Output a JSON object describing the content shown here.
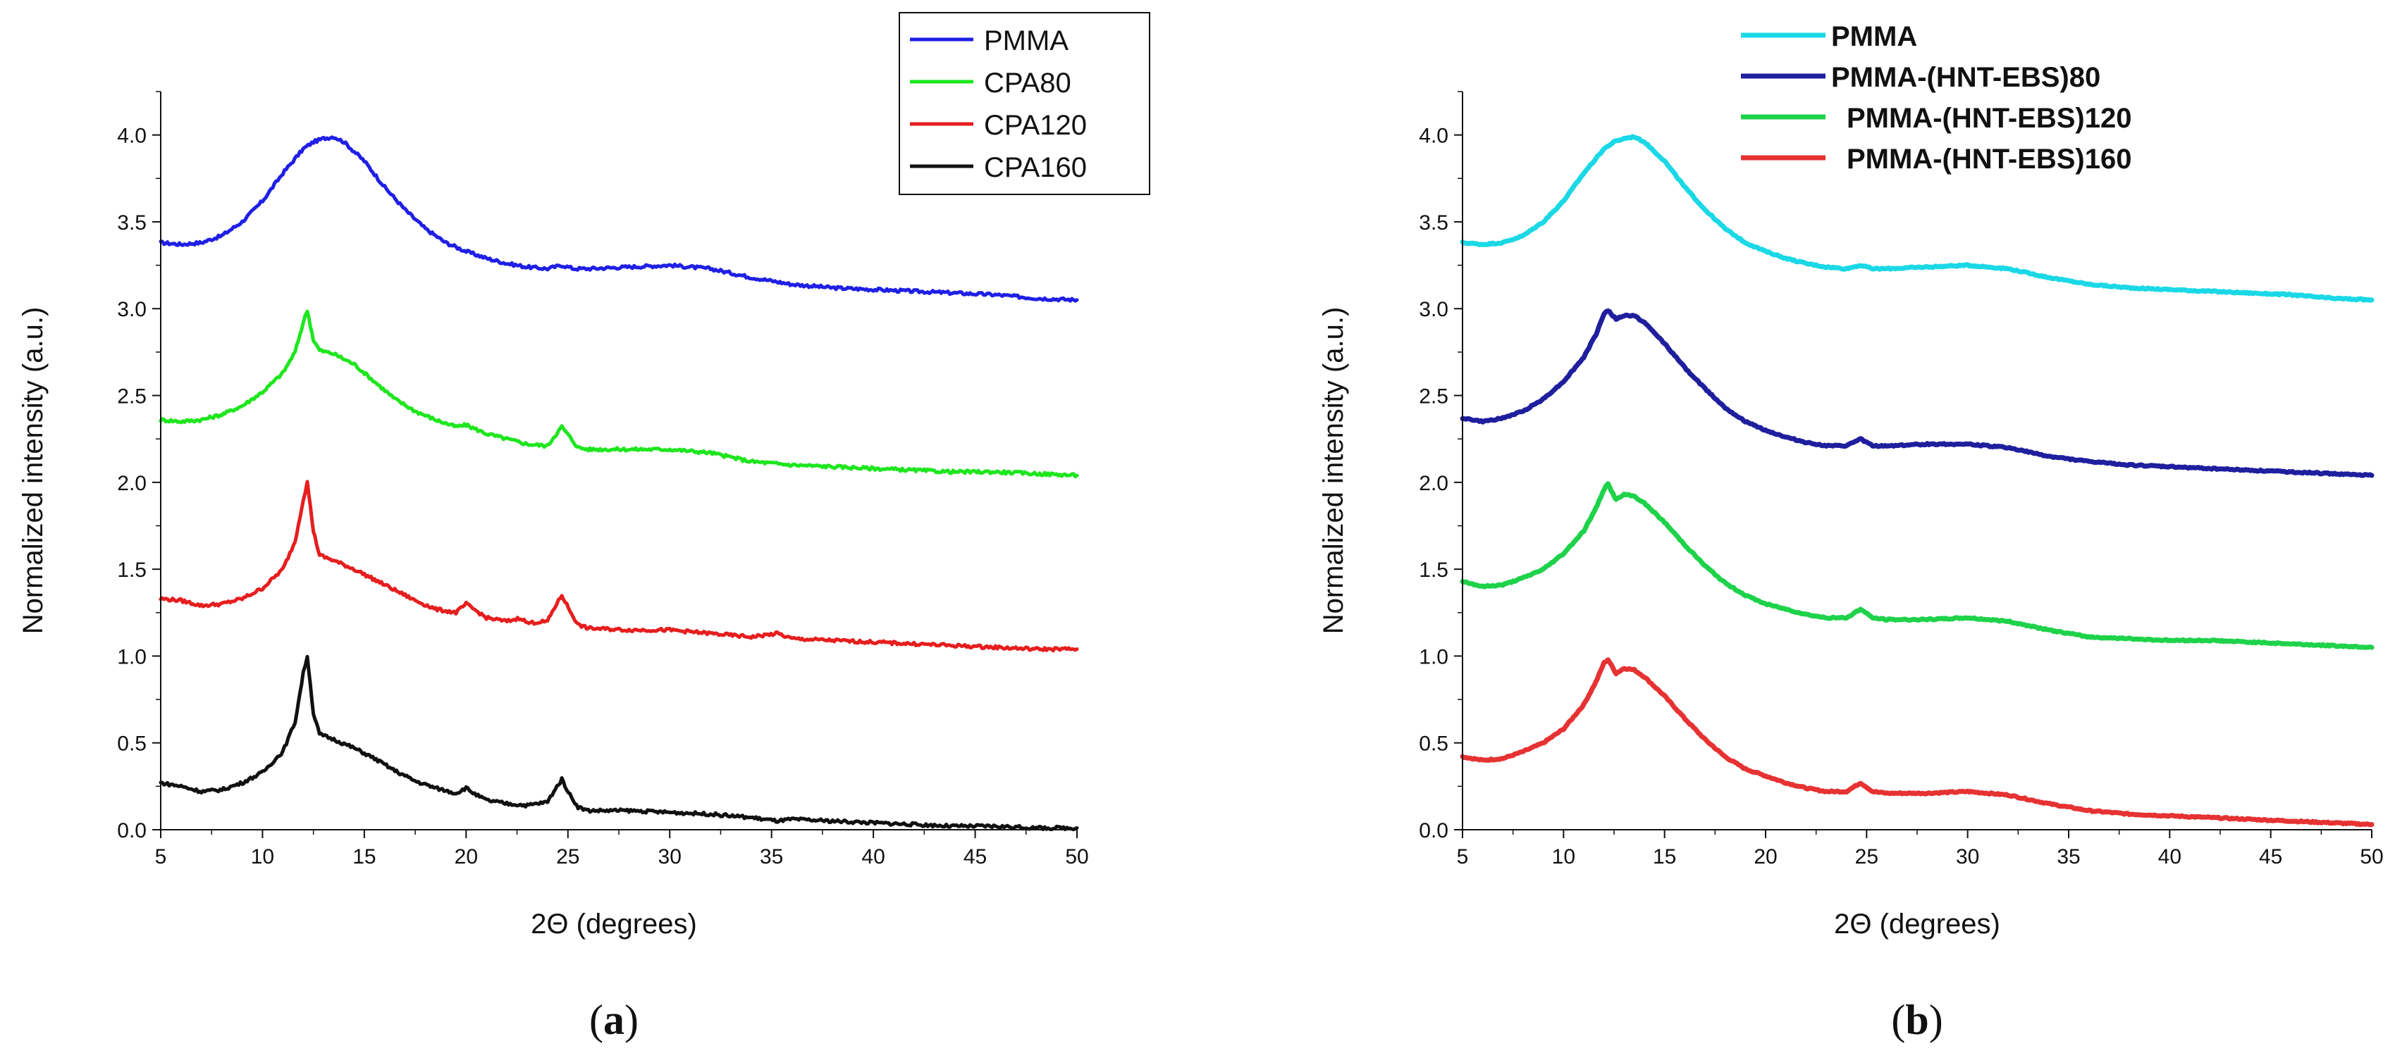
{
  "chart_data": [
    {
      "type": "line",
      "panel_label": "a",
      "title": "",
      "xlabel": "2Θ (degrees)",
      "ylabel": "Normalized intensity (a.u.)",
      "xlim": [
        5,
        50
      ],
      "ylim": [
        0,
        4.25
      ],
      "xticks": [
        "5",
        "10",
        "15",
        "20",
        "25",
        "30",
        "35",
        "40",
        "45",
        "50"
      ],
      "yticks": [
        "0.0",
        "0.5",
        "1.0",
        "1.5",
        "2.0",
        "2.5",
        "3.0",
        "3.5",
        "4.0"
      ],
      "legend_position": "top-right",
      "legend_boxed": true,
      "series": [
        {
          "name": "PMMA",
          "color": "#1f1fe6",
          "x": [
            5,
            6,
            7,
            8,
            9,
            10,
            11,
            12,
            12.5,
            13,
            13.5,
            14,
            15,
            16,
            17,
            18,
            19,
            20,
            21,
            22,
            23,
            24,
            24.7,
            25.3,
            26,
            28,
            30,
            32,
            34,
            36,
            38,
            40,
            42,
            44,
            46,
            48,
            50
          ],
          "values": [
            3.38,
            3.37,
            3.38,
            3.42,
            3.5,
            3.62,
            3.78,
            3.92,
            3.96,
            3.98,
            3.99,
            3.96,
            3.85,
            3.7,
            3.57,
            3.46,
            3.38,
            3.33,
            3.29,
            3.26,
            3.24,
            3.23,
            3.25,
            3.23,
            3.23,
            3.24,
            3.25,
            3.23,
            3.18,
            3.14,
            3.12,
            3.11,
            3.1,
            3.09,
            3.08,
            3.06,
            3.05
          ]
        },
        {
          "name": "CPA80",
          "color": "#1ee61e",
          "x": [
            5,
            6,
            7,
            8,
            9,
            10,
            11,
            11.6,
            12,
            12.2,
            12.5,
            12.8,
            13.5,
            14.5,
            15.5,
            16.5,
            17.5,
            18.5,
            19.5,
            20,
            21,
            22,
            23,
            24,
            24.3,
            24.7,
            25.1,
            25.5,
            26,
            28,
            30,
            32,
            34,
            36,
            38,
            40,
            42,
            44,
            46,
            48,
            50
          ],
          "values": [
            2.36,
            2.35,
            2.36,
            2.39,
            2.44,
            2.52,
            2.63,
            2.75,
            2.92,
            2.99,
            2.82,
            2.76,
            2.74,
            2.68,
            2.58,
            2.48,
            2.41,
            2.36,
            2.32,
            2.33,
            2.28,
            2.25,
            2.22,
            2.21,
            2.26,
            2.32,
            2.26,
            2.2,
            2.19,
            2.19,
            2.19,
            2.17,
            2.12,
            2.1,
            2.09,
            2.08,
            2.07,
            2.06,
            2.06,
            2.05,
            2.04
          ]
        },
        {
          "name": "CPA120",
          "color": "#e61e1e",
          "x": [
            5,
            6,
            7,
            8,
            9,
            10,
            11,
            11.6,
            12,
            12.2,
            12.5,
            12.8,
            13.5,
            14.5,
            15.5,
            16.5,
            17.5,
            18.5,
            19.5,
            20,
            20.5,
            21,
            22,
            22.7,
            23,
            24,
            24.3,
            24.7,
            25.1,
            25.5,
            26,
            28,
            30,
            32,
            34,
            35.3,
            36,
            38,
            40,
            42,
            44,
            46,
            48,
            50
          ],
          "values": [
            1.33,
            1.32,
            1.29,
            1.3,
            1.33,
            1.39,
            1.5,
            1.66,
            1.9,
            2.0,
            1.72,
            1.58,
            1.55,
            1.5,
            1.44,
            1.38,
            1.32,
            1.27,
            1.25,
            1.3,
            1.26,
            1.22,
            1.2,
            1.22,
            1.19,
            1.2,
            1.27,
            1.35,
            1.26,
            1.18,
            1.16,
            1.15,
            1.15,
            1.13,
            1.11,
            1.13,
            1.1,
            1.09,
            1.08,
            1.07,
            1.06,
            1.05,
            1.04,
            1.04
          ]
        },
        {
          "name": "CPA160",
          "color": "#111111",
          "x": [
            5,
            6,
            7,
            8,
            9,
            10,
            11,
            11.6,
            12,
            12.2,
            12.5,
            12.8,
            13.5,
            14.5,
            15.5,
            16.5,
            17.5,
            18.5,
            19.5,
            20,
            20.5,
            21,
            22,
            23,
            24,
            24.3,
            24.7,
            25.1,
            25.5,
            26,
            28,
            30,
            32,
            34,
            35.3,
            36,
            38,
            40,
            42,
            44,
            46,
            48,
            50
          ],
          "values": [
            0.27,
            0.25,
            0.22,
            0.23,
            0.27,
            0.33,
            0.45,
            0.62,
            0.9,
            1.0,
            0.67,
            0.55,
            0.52,
            0.47,
            0.41,
            0.34,
            0.28,
            0.24,
            0.21,
            0.24,
            0.2,
            0.17,
            0.15,
            0.14,
            0.16,
            0.22,
            0.29,
            0.2,
            0.13,
            0.11,
            0.11,
            0.1,
            0.09,
            0.07,
            0.05,
            0.06,
            0.05,
            0.04,
            0.03,
            0.02,
            0.02,
            0.01,
            0.01
          ]
        }
      ]
    },
    {
      "type": "line",
      "panel_label": "b",
      "title": "",
      "xlabel": "2Θ (degrees)",
      "ylabel": "Normalized intensity (a.u.)",
      "xlim": [
        5,
        50
      ],
      "ylim": [
        0,
        4.25
      ],
      "xticks": [
        "5",
        "10",
        "15",
        "20",
        "25",
        "30",
        "35",
        "40",
        "45",
        "50"
      ],
      "yticks": [
        "0.0",
        "0.5",
        "1.0",
        "1.5",
        "2.0",
        "2.5",
        "3.0",
        "3.5",
        "4.0"
      ],
      "legend_position": "top",
      "legend_boxed": false,
      "series": [
        {
          "name": "PMMA",
          "color": "#1ad8e6",
          "x": [
            5,
            6,
            7,
            8,
            9,
            10,
            11,
            12,
            12.5,
            13,
            13.5,
            14,
            15,
            16,
            17,
            18,
            19,
            20,
            21,
            22,
            23,
            24,
            24.7,
            25.3,
            26,
            28,
            30,
            32,
            34,
            36,
            38,
            40,
            42,
            44,
            46,
            48,
            50
          ],
          "values": [
            3.38,
            3.37,
            3.38,
            3.42,
            3.5,
            3.62,
            3.78,
            3.92,
            3.96,
            3.98,
            3.99,
            3.96,
            3.85,
            3.7,
            3.57,
            3.46,
            3.38,
            3.33,
            3.29,
            3.26,
            3.24,
            3.23,
            3.25,
            3.23,
            3.23,
            3.24,
            3.25,
            3.23,
            3.18,
            3.14,
            3.12,
            3.11,
            3.1,
            3.09,
            3.08,
            3.06,
            3.05
          ]
        },
        {
          "name": "PMMA-(HNT-EBS)80",
          "color": "#1f1f9e",
          "x": [
            5,
            6,
            7,
            8,
            9,
            10,
            11,
            11.6,
            12,
            12.2,
            12.6,
            13,
            13.5,
            14,
            15,
            16,
            17,
            18,
            19,
            20,
            21,
            22,
            23,
            24,
            24.7,
            25.3,
            26,
            28,
            30,
            32,
            34,
            36,
            38,
            40,
            42,
            44,
            46,
            48,
            50
          ],
          "values": [
            2.37,
            2.35,
            2.37,
            2.41,
            2.48,
            2.58,
            2.72,
            2.85,
            2.97,
            2.99,
            2.94,
            2.96,
            2.96,
            2.92,
            2.8,
            2.66,
            2.54,
            2.43,
            2.35,
            2.3,
            2.26,
            2.23,
            2.21,
            2.21,
            2.25,
            2.21,
            2.21,
            2.22,
            2.22,
            2.2,
            2.15,
            2.12,
            2.1,
            2.09,
            2.08,
            2.07,
            2.06,
            2.05,
            2.04
          ]
        },
        {
          "name": "PMMA-(HNT-EBS)120",
          "color": "#1ed24a",
          "x": [
            5,
            6,
            7,
            8,
            9,
            10,
            11,
            11.6,
            12,
            12.2,
            12.6,
            13,
            13.5,
            14,
            15,
            16,
            17,
            18,
            19,
            20,
            21,
            22,
            23,
            24,
            24.7,
            25.3,
            26,
            28,
            30,
            32,
            34,
            36,
            38,
            40,
            42,
            44,
            46,
            48,
            50
          ],
          "values": [
            1.43,
            1.4,
            1.41,
            1.45,
            1.5,
            1.59,
            1.72,
            1.85,
            1.96,
            1.99,
            1.9,
            1.93,
            1.92,
            1.88,
            1.77,
            1.64,
            1.52,
            1.42,
            1.35,
            1.3,
            1.27,
            1.24,
            1.22,
            1.22,
            1.27,
            1.22,
            1.21,
            1.21,
            1.22,
            1.2,
            1.15,
            1.11,
            1.1,
            1.09,
            1.09,
            1.08,
            1.07,
            1.06,
            1.05
          ]
        },
        {
          "name": "PMMA-(HNT-EBS)160",
          "color": "#e63232",
          "x": [
            5,
            6,
            7,
            8,
            9,
            10,
            11,
            11.6,
            12,
            12.2,
            12.6,
            13,
            13.5,
            14,
            15,
            16,
            17,
            18,
            19,
            20,
            21,
            22,
            23,
            24,
            24.7,
            25.3,
            26,
            28,
            30,
            32,
            34,
            36,
            38,
            40,
            42,
            44,
            46,
            48,
            50
          ],
          "values": [
            0.42,
            0.4,
            0.41,
            0.45,
            0.5,
            0.58,
            0.72,
            0.85,
            0.96,
            0.98,
            0.9,
            0.93,
            0.92,
            0.88,
            0.77,
            0.64,
            0.52,
            0.42,
            0.35,
            0.31,
            0.27,
            0.24,
            0.22,
            0.22,
            0.27,
            0.22,
            0.21,
            0.21,
            0.22,
            0.2,
            0.15,
            0.11,
            0.09,
            0.08,
            0.07,
            0.06,
            0.05,
            0.04,
            0.03
          ]
        }
      ]
    }
  ]
}
